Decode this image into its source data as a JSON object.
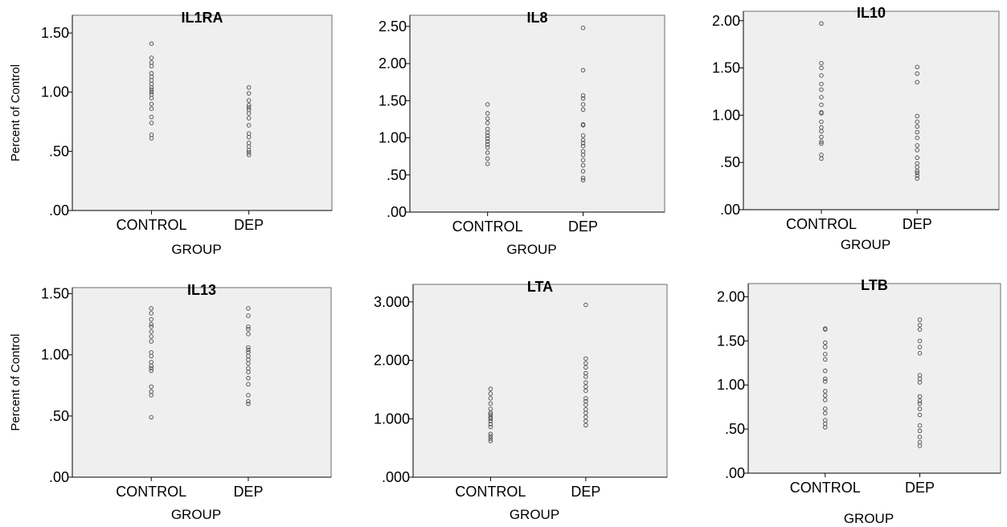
{
  "chart_data": [
    {
      "type": "scatter",
      "title": "IL1RA",
      "xlabel": "GROUP",
      "ylabel": "Percent of Control",
      "categories": [
        "CONTROL",
        "DEP"
      ],
      "ylim": [
        0,
        1.65
      ],
      "yticks": [
        0,
        0.5,
        1.0,
        1.5
      ],
      "ytick_labels": [
        ".00",
        ".50",
        "1.00",
        "1.50"
      ],
      "grid": false,
      "series": [
        {
          "category": "CONTROL",
          "values": [
            1.41,
            1.29,
            1.25,
            1.22,
            1.16,
            1.13,
            1.1,
            1.07,
            1.04,
            1.02,
            1.0,
            0.98,
            0.95,
            0.9,
            0.86,
            0.79,
            0.74,
            0.64,
            0.61
          ]
        },
        {
          "category": "DEP",
          "values": [
            1.04,
            0.99,
            0.93,
            0.89,
            0.87,
            0.85,
            0.82,
            0.78,
            0.72,
            0.65,
            0.62,
            0.57,
            0.54,
            0.51,
            0.49,
            0.47
          ]
        }
      ]
    },
    {
      "type": "scatter",
      "title": "IL8",
      "xlabel": "GROUP",
      "ylabel": "",
      "categories": [
        "CONTROL",
        "DEP"
      ],
      "ylim": [
        0,
        2.65
      ],
      "yticks": [
        0,
        0.5,
        1.0,
        1.5,
        2.0,
        2.5
      ],
      "ytick_labels": [
        ".00",
        ".50",
        "1.00",
        "1.50",
        "2.00",
        "2.50"
      ],
      "grid": false,
      "series": [
        {
          "category": "CONTROL",
          "values": [
            1.45,
            1.33,
            1.26,
            1.2,
            1.12,
            1.07,
            1.03,
            0.99,
            0.95,
            0.91,
            0.87,
            0.8,
            0.72,
            0.65
          ]
        },
        {
          "category": "DEP",
          "values": [
            2.48,
            1.91,
            1.57,
            1.53,
            1.45,
            1.38,
            1.18,
            1.17,
            1.03,
            0.97,
            0.93,
            0.89,
            0.82,
            0.77,
            0.7,
            0.63,
            0.55,
            0.46,
            0.43
          ]
        }
      ]
    },
    {
      "type": "scatter",
      "title": "IL10",
      "xlabel": "GROUP",
      "ylabel": "",
      "categories": [
        "CONTROL",
        "DEP"
      ],
      "ylim": [
        0,
        2.1
      ],
      "yticks": [
        0,
        0.5,
        1.0,
        1.5,
        2.0
      ],
      "ytick_labels": [
        ".00",
        ".50",
        "1.00",
        "1.50",
        "2.00"
      ],
      "grid": false,
      "series": [
        {
          "category": "CONTROL",
          "values": [
            1.97,
            1.55,
            1.5,
            1.42,
            1.33,
            1.27,
            1.19,
            1.11,
            1.03,
            1.02,
            0.93,
            0.87,
            0.83,
            0.77,
            0.72,
            0.7,
            0.58,
            0.54
          ]
        },
        {
          "category": "DEP",
          "values": [
            1.51,
            1.44,
            1.35,
            0.99,
            0.93,
            0.88,
            0.82,
            0.76,
            0.68,
            0.63,
            0.55,
            0.49,
            0.45,
            0.41,
            0.39,
            0.36,
            0.33
          ]
        }
      ]
    },
    {
      "type": "scatter",
      "title": "IL13",
      "xlabel": "GROUP",
      "ylabel": "Percent of Control",
      "categories": [
        "CONTROL",
        "DEP"
      ],
      "ylim": [
        0,
        1.55
      ],
      "yticks": [
        0,
        0.5,
        1.0,
        1.5
      ],
      "ytick_labels": [
        ".00",
        ".50",
        "1.00",
        "1.50"
      ],
      "grid": false,
      "series": [
        {
          "category": "CONTROL",
          "values": [
            1.38,
            1.34,
            1.29,
            1.25,
            1.23,
            1.19,
            1.15,
            1.11,
            1.02,
            0.99,
            0.94,
            0.91,
            0.89,
            0.87,
            0.74,
            0.7,
            0.67,
            0.49
          ]
        },
        {
          "category": "DEP",
          "values": [
            1.38,
            1.32,
            1.23,
            1.21,
            1.17,
            1.06,
            1.04,
            1.02,
            0.99,
            0.96,
            0.93,
            0.89,
            0.86,
            0.81,
            0.76,
            0.67,
            0.62,
            0.6
          ]
        }
      ]
    },
    {
      "type": "scatter",
      "title": "LTA",
      "xlabel": "GROUP",
      "ylabel": "",
      "categories": [
        "CONTROL",
        "DEP"
      ],
      "ylim": [
        0,
        3.3
      ],
      "yticks": [
        0,
        1.0,
        2.0,
        3.0
      ],
      "ytick_labels": [
        ".000",
        "1.000",
        "2.000",
        "3.000"
      ],
      "grid": false,
      "series": [
        {
          "category": "CONTROL",
          "values": [
            1.51,
            1.43,
            1.35,
            1.26,
            1.17,
            1.1,
            1.07,
            1.03,
            1.0,
            0.96,
            0.91,
            0.86,
            0.74,
            0.7,
            0.66,
            0.62
          ]
        },
        {
          "category": "DEP",
          "values": [
            2.95,
            2.03,
            1.95,
            1.88,
            1.78,
            1.72,
            1.62,
            1.55,
            1.48,
            1.35,
            1.3,
            1.24,
            1.16,
            1.1,
            1.03,
            0.96,
            0.89
          ]
        }
      ]
    },
    {
      "type": "scatter",
      "title": "LTB",
      "xlabel": "GROUP",
      "ylabel": "",
      "categories": [
        "CONTROL",
        "DEP"
      ],
      "ylim": [
        0,
        2.15
      ],
      "yticks": [
        0,
        0.5,
        1.0,
        1.5,
        2.0
      ],
      "ytick_labels": [
        ".00",
        ".50",
        "1.00",
        "1.50",
        "2.00"
      ],
      "grid": false,
      "series": [
        {
          "category": "CONTROL",
          "values": [
            1.64,
            1.63,
            1.48,
            1.43,
            1.35,
            1.29,
            1.16,
            1.07,
            1.04,
            0.93,
            0.88,
            0.83,
            0.73,
            0.68,
            0.6,
            0.56,
            0.52
          ]
        },
        {
          "category": "DEP",
          "values": [
            1.74,
            1.68,
            1.63,
            1.5,
            1.43,
            1.36,
            1.11,
            1.07,
            1.03,
            0.87,
            0.82,
            0.79,
            0.73,
            0.66,
            0.54,
            0.48,
            0.41,
            0.35,
            0.31
          ]
        }
      ]
    }
  ]
}
